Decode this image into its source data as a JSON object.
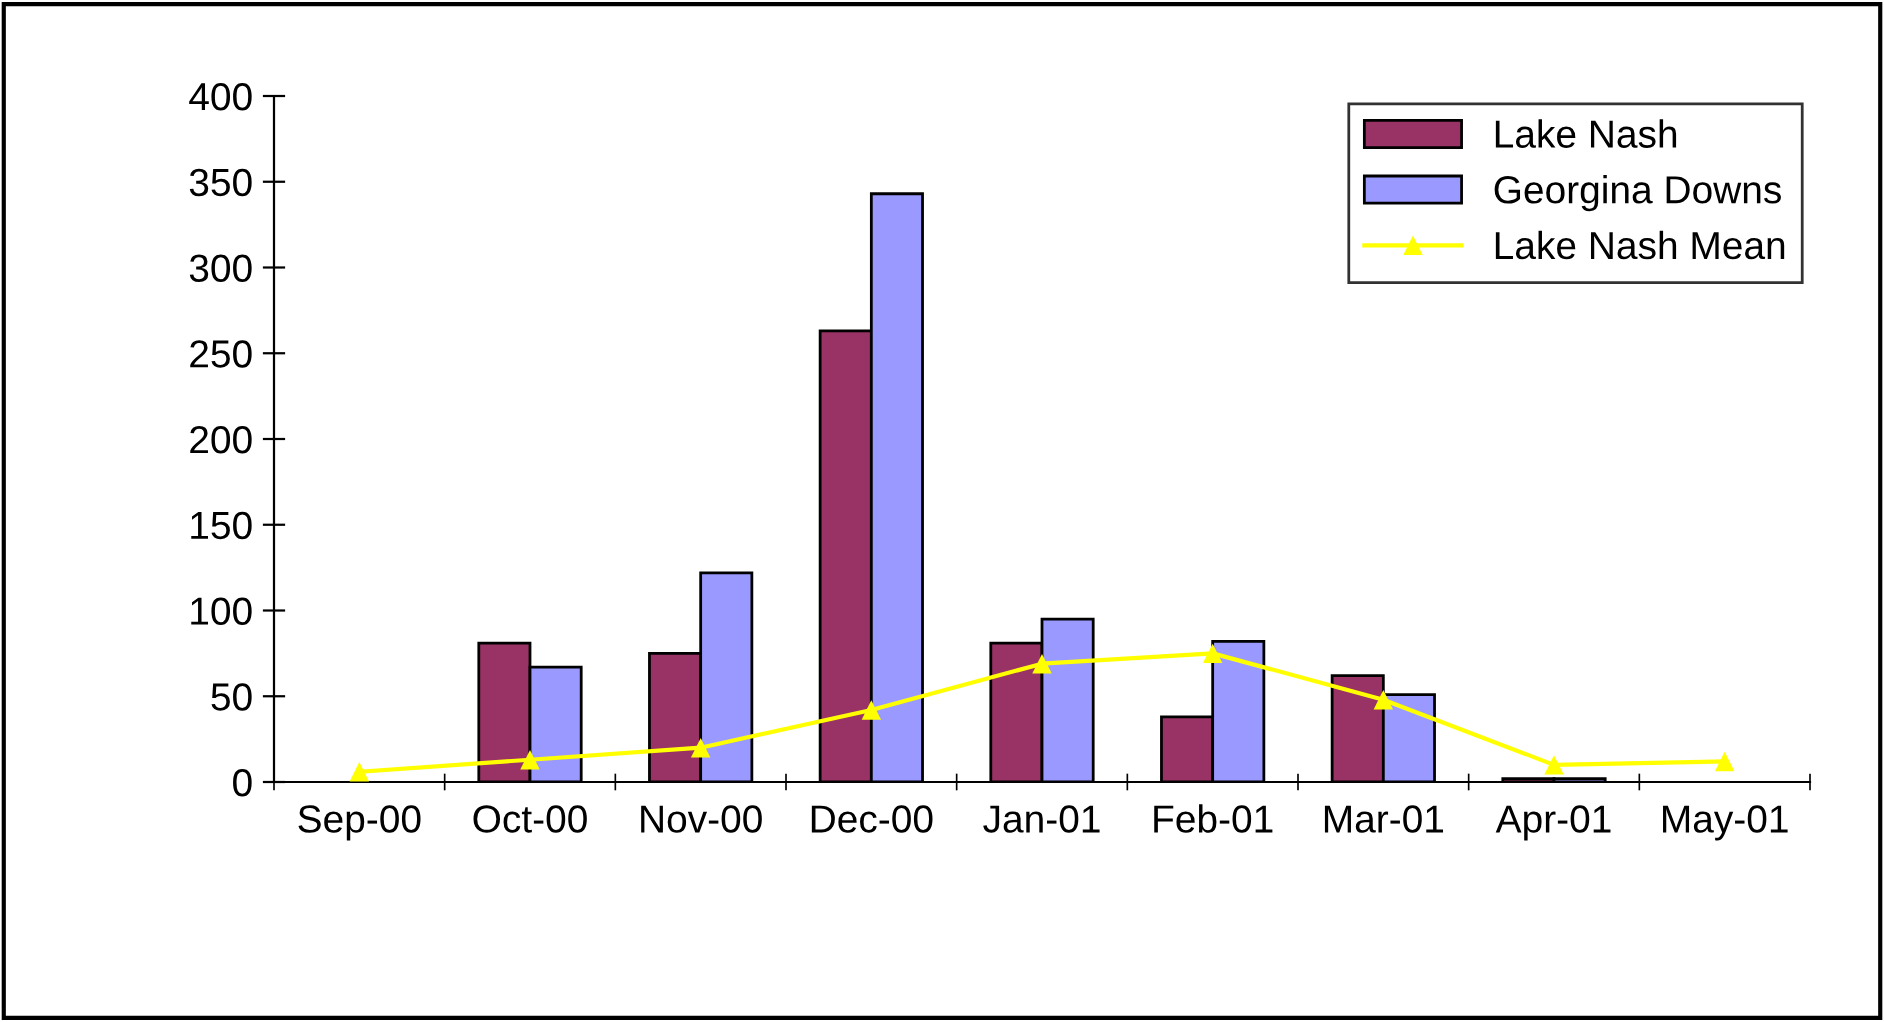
{
  "chart_data": {
    "type": "bar",
    "categories": [
      "Sep-00",
      "Oct-00",
      "Nov-00",
      "Dec-00",
      "Jan-01",
      "Feb-01",
      "Mar-01",
      "Apr-01",
      "May-01"
    ],
    "series": [
      {
        "name": "Lake Nash",
        "color": "#993366",
        "values": [
          null,
          81,
          75,
          263,
          81,
          38,
          62,
          2,
          null
        ]
      },
      {
        "name": "Georgina Downs",
        "color": "#9999ff",
        "values": [
          null,
          67,
          122,
          343,
          95,
          82,
          51,
          2,
          null
        ]
      },
      {
        "name": "Lake Nash Mean",
        "color": "#ffff00",
        "type": "line",
        "marker": "triangle",
        "values": [
          6,
          13,
          20,
          42,
          69,
          75,
          48,
          10,
          12
        ]
      }
    ],
    "ylim": [
      0,
      400
    ],
    "yticks": [
      0,
      50,
      100,
      150,
      200,
      250,
      300,
      350,
      400
    ],
    "grid": false,
    "legend": "top right"
  }
}
